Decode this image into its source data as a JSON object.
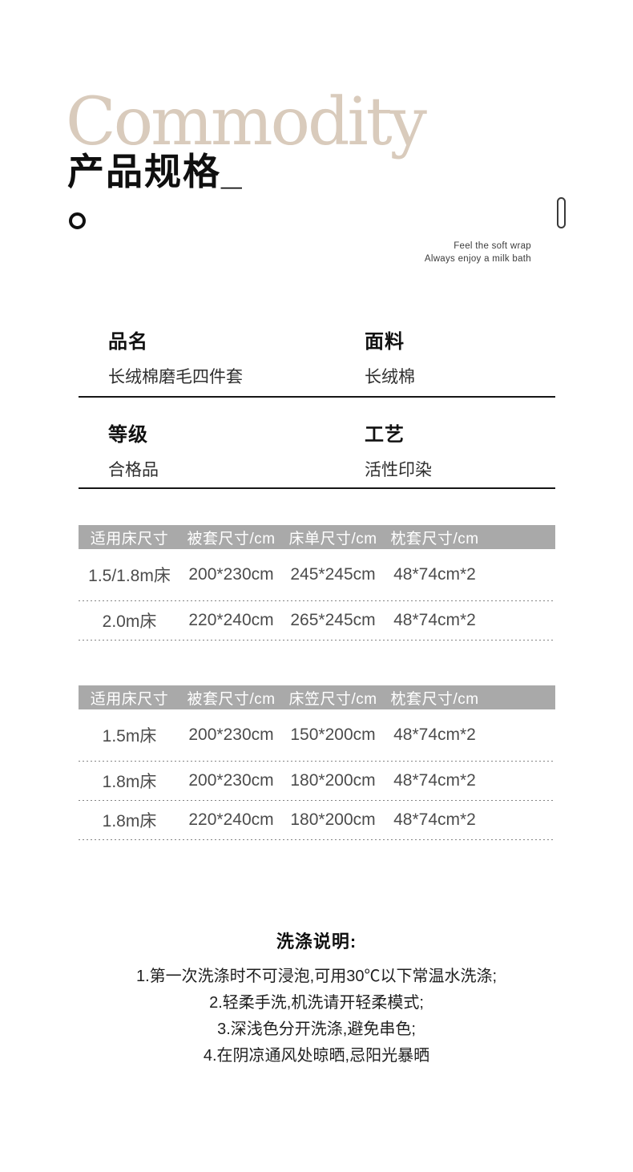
{
  "page": {
    "watermark": "Commodity",
    "title": "产品规格_",
    "tagline": [
      "Feel the soft wrap",
      "Always enjoy a milk bath"
    ]
  },
  "specs": {
    "row1": {
      "col1": {
        "label": "品名",
        "value": "长绒棉磨毛四件套"
      },
      "col2": {
        "label": "面料",
        "value": "长绒棉"
      }
    },
    "row2": {
      "col1": {
        "label": "等级",
        "value": "合格品"
      },
      "col2": {
        "label": "工艺",
        "value": "活性印染"
      }
    }
  },
  "tables": [
    {
      "headers": [
        "适用床尺寸",
        "被套尺寸/cm",
        "床单尺寸/cm",
        "枕套尺寸/cm"
      ],
      "rows": [
        [
          "1.5/1.8m床",
          "200*230cm",
          "245*245cm",
          "48*74cm*2"
        ],
        [
          "2.0m床",
          "220*240cm",
          "265*245cm",
          "48*74cm*2"
        ]
      ]
    },
    {
      "headers": [
        "适用床尺寸",
        "被套尺寸/cm",
        "床笠尺寸/cm",
        "枕套尺寸/cm"
      ],
      "rows": [
        [
          "1.5m床",
          "200*230cm",
          "150*200cm",
          "48*74cm*2"
        ],
        [
          "1.8m床",
          "200*230cm",
          "180*200cm",
          "48*74cm*2"
        ],
        [
          "1.8m床",
          "220*240cm",
          "180*200cm",
          "48*74cm*2"
        ]
      ]
    }
  ],
  "washing": {
    "title": "洗涤说明:",
    "items": [
      "1.第一次洗涤时不可浸泡,可用30℃以下常温水洗涤;",
      "2.轻柔手洗,机洗请开轻柔模式;",
      "3.深浅色分开洗涤,避免串色;",
      "4.在阴凉通风处晾晒,忌阳光暴晒"
    ]
  },
  "colors": {
    "watermark": "#d9cbbc",
    "table_header_bg": "#a9a9a9",
    "header_text": "#ffffff",
    "body_text": "#4c4c4c",
    "title_text": "#0f0f0f"
  }
}
